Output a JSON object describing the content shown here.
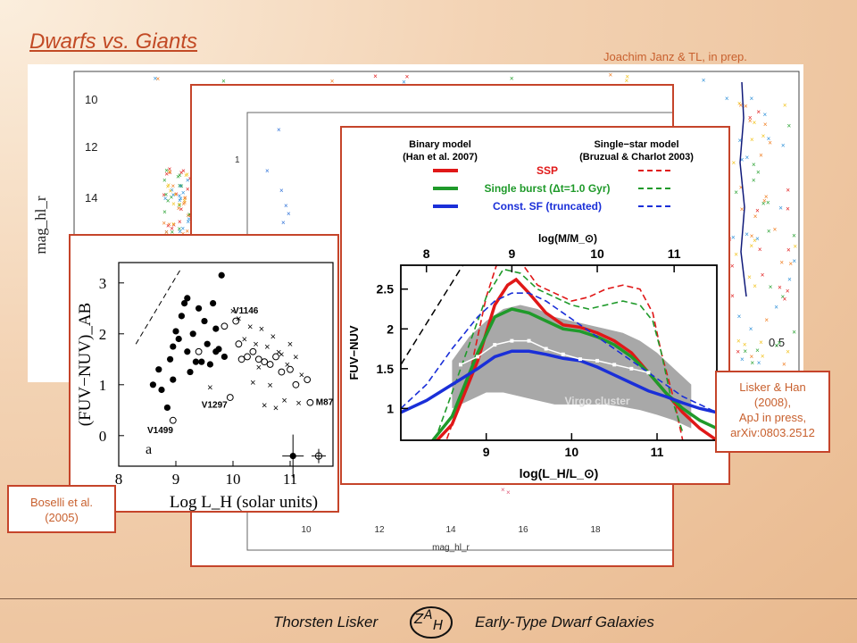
{
  "slide": {
    "title": "Dwarfs vs. Giants",
    "credit": "Joachim Janz & TL, in prep.",
    "footer_left": "Thorsten Lisker",
    "footer_right": "Early-Type Dwarf Galaxies"
  },
  "citations": {
    "boselli": [
      "Boselli et al.",
      "(2005)"
    ],
    "lisker": [
      "Lisker & Han",
      "(2008),",
      "ApJ in press,",
      "arXiv:0803.2512"
    ]
  },
  "colors": {
    "accent": "#c24a25",
    "frame": "#c5442a"
  },
  "chart_data": [
    {
      "id": "background-scatter",
      "type": "scatter",
      "ylabel": "mag_hl_r",
      "yticks": [
        "10",
        "12",
        "14"
      ],
      "right_label": "0.5"
    },
    {
      "id": "middle-scatter",
      "type": "scatter",
      "xlabel": "mag_hl_r",
      "xticks": [
        "10",
        "12",
        "14",
        "16",
        "18"
      ],
      "yticks": [
        "1"
      ]
    },
    {
      "id": "boselli",
      "type": "scatter",
      "xlabel": "Log L_H (solar units)",
      "ylabel": "(FUV−NUV)_AB",
      "xticks": [
        "8",
        "9",
        "10",
        "11"
      ],
      "yticks": [
        "0",
        "1",
        "2",
        "3"
      ],
      "xlim": [
        8,
        11.75
      ],
      "ylim": [
        -0.6,
        3.4
      ],
      "panel_letter": "a",
      "annotations": [
        {
          "text": "V1146",
          "x": 10.0,
          "y": 2.4
        },
        {
          "text": "V1297",
          "x": 9.45,
          "y": 0.55
        },
        {
          "text": "V1499",
          "x": 8.5,
          "y": 0.05
        },
        {
          "text": "M87",
          "x": 11.45,
          "y": 0.6
        }
      ],
      "series": [
        {
          "name": "",
          "marker": "filled-circle",
          "points": [
            [
              8.6,
              1.0
            ],
            [
              8.7,
              1.3
            ],
            [
              8.75,
              0.9
            ],
            [
              8.85,
              0.55
            ],
            [
              8.9,
              1.5
            ],
            [
              8.95,
              1.1
            ],
            [
              9.0,
              2.05
            ],
            [
              9.05,
              1.9
            ],
            [
              9.1,
              2.35
            ],
            [
              9.15,
              2.6
            ],
            [
              9.2,
              1.65
            ],
            [
              9.25,
              1.25
            ],
            [
              9.3,
              2.0
            ],
            [
              9.35,
              1.45
            ],
            [
              9.4,
              2.5
            ],
            [
              9.5,
              2.25
            ],
            [
              9.55,
              1.8
            ],
            [
              9.6,
              1.4
            ],
            [
              9.7,
              2.1
            ],
            [
              9.75,
              1.7
            ],
            [
              9.8,
              3.15
            ],
            [
              9.85,
              1.55
            ],
            [
              9.2,
              2.7
            ],
            [
              8.95,
              1.75
            ],
            [
              9.45,
              1.45
            ],
            [
              9.65,
              2.6
            ],
            [
              9.7,
              1.65
            ]
          ]
        },
        {
          "name": "",
          "marker": "open-circle",
          "points": [
            [
              8.95,
              0.3
            ],
            [
              9.4,
              1.65
            ],
            [
              9.85,
              2.15
            ],
            [
              9.95,
              0.75
            ],
            [
              10.05,
              2.25
            ],
            [
              10.1,
              1.8
            ],
            [
              10.15,
              1.5
            ],
            [
              10.25,
              1.55
            ],
            [
              10.35,
              1.65
            ],
            [
              10.45,
              1.5
            ],
            [
              10.55,
              1.45
            ],
            [
              10.65,
              1.4
            ],
            [
              10.75,
              1.55
            ],
            [
              10.85,
              1.25
            ],
            [
              11.0,
              1.3
            ],
            [
              11.1,
              1.0
            ],
            [
              11.3,
              1.1
            ],
            [
              11.35,
              0.65
            ]
          ]
        },
        {
          "name": "",
          "marker": "cross",
          "points": [
            [
              9.6,
              0.95
            ],
            [
              10.0,
              2.45
            ],
            [
              10.1,
              2.3
            ],
            [
              10.2,
              1.9
            ],
            [
              10.3,
              2.15
            ],
            [
              10.4,
              1.8
            ],
            [
              10.45,
              1.35
            ],
            [
              10.5,
              2.1
            ],
            [
              10.6,
              1.75
            ],
            [
              10.65,
              1.0
            ],
            [
              10.7,
              1.95
            ],
            [
              10.8,
              1.65
            ],
            [
              10.85,
              1.6
            ],
            [
              10.9,
              0.7
            ],
            [
              10.95,
              1.4
            ],
            [
              11.0,
              1.8
            ],
            [
              11.1,
              1.55
            ],
            [
              11.2,
              1.2
            ],
            [
              10.35,
              1.05
            ],
            [
              10.55,
              0.6
            ],
            [
              11.15,
              0.65
            ],
            [
              10.75,
              0.55
            ]
          ]
        },
        {
          "name": "",
          "marker": "filled-circle-errorbar",
          "points": [
            [
              11.05,
              -0.4
            ]
          ]
        },
        {
          "name": "",
          "marker": "open-circle-errorbar",
          "points": [
            [
              11.5,
              -0.4
            ]
          ]
        }
      ]
    },
    {
      "id": "lisker-han",
      "type": "line",
      "xlabel": "log(L_H/L_⊙)",
      "ylabel": "FUV−NUV",
      "top_axis_label": "log(M/M_⊙)",
      "xticks": [
        "9",
        "10",
        "11"
      ],
      "top_ticks": [
        "8",
        "9",
        "10",
        "11"
      ],
      "yticks": [
        "1",
        "1.5",
        "2",
        "2.5"
      ],
      "xlim": [
        8.0,
        11.7
      ],
      "ylim": [
        0.6,
        2.8
      ],
      "legend_headers": [
        "Binary model (Han et al. 2007)",
        "Single-star model (Bruzual & Charlot 2003)"
      ],
      "legend_entries": [
        "SSP",
        "Single burst (Δt=1.0 Gyr)",
        "Const. SF (truncated)"
      ],
      "band_label": "Virgo cluster",
      "series": [
        {
          "name": "SSP",
          "style": "binary",
          "color": "#e01818",
          "x": [
            8.25,
            8.6,
            8.9,
            9.1,
            9.25,
            9.35,
            9.5,
            9.7,
            9.9,
            10.1,
            10.3,
            10.5,
            10.7,
            10.9,
            11.1,
            11.3,
            11.5,
            11.7
          ],
          "y": [
            0.4,
            0.8,
            1.6,
            2.3,
            2.55,
            2.62,
            2.45,
            2.2,
            2.05,
            2.02,
            1.95,
            1.85,
            1.7,
            1.45,
            1.2,
            0.95,
            0.75,
            0.6
          ]
        },
        {
          "name": "SSP",
          "style": "single-star",
          "color": "#e01818",
          "x": [
            8.5,
            8.8,
            9.0,
            9.15,
            9.25,
            9.4,
            9.6,
            9.8,
            10.0,
            10.2,
            10.4,
            10.6,
            10.8,
            10.95,
            11.05,
            11.2,
            11.3
          ],
          "y": [
            0.5,
            1.4,
            2.4,
            2.9,
            3.0,
            2.85,
            2.55,
            2.45,
            2.35,
            2.4,
            2.5,
            2.55,
            2.5,
            2.2,
            1.7,
            1.1,
            0.6
          ]
        },
        {
          "name": "Single burst (Δt=1.0 Gyr)",
          "style": "binary",
          "color": "#1f9a2a",
          "x": [
            8.3,
            8.6,
            8.9,
            9.1,
            9.3,
            9.5,
            9.7,
            9.9,
            10.1,
            10.3,
            10.5,
            10.7,
            10.9,
            11.1,
            11.3,
            11.5,
            11.7
          ],
          "y": [
            0.5,
            0.9,
            1.7,
            2.15,
            2.25,
            2.2,
            2.1,
            2.0,
            1.97,
            1.9,
            1.8,
            1.65,
            1.45,
            1.2,
            1.0,
            0.85,
            0.75
          ]
        },
        {
          "name": "Single burst (Δt=1.0 Gyr)",
          "style": "single-star",
          "color": "#1f9a2a",
          "x": [
            8.4,
            8.7,
            9.0,
            9.2,
            9.4,
            9.6,
            9.8,
            10.0,
            10.2,
            10.4,
            10.6,
            10.8,
            10.95,
            11.05,
            11.15,
            11.3
          ],
          "y": [
            0.6,
            1.5,
            2.4,
            2.75,
            2.7,
            2.5,
            2.4,
            2.3,
            2.25,
            2.3,
            2.35,
            2.3,
            2.1,
            1.7,
            1.2,
            0.7
          ]
        },
        {
          "name": "Const. SF (truncated)",
          "style": "binary",
          "color": "#1a2fd8",
          "x": [
            8.0,
            8.3,
            8.6,
            8.9,
            9.1,
            9.3,
            9.5,
            9.7,
            9.9,
            10.1,
            10.3,
            10.5,
            10.7,
            10.9,
            11.1,
            11.3,
            11.5,
            11.7
          ],
          "y": [
            0.95,
            1.1,
            1.3,
            1.5,
            1.65,
            1.72,
            1.72,
            1.68,
            1.63,
            1.6,
            1.52,
            1.42,
            1.32,
            1.22,
            1.15,
            1.07,
            1.0,
            0.95
          ]
        },
        {
          "name": "Const. SF (truncated)",
          "style": "single-star",
          "color": "#1a2fd8",
          "x": [
            8.0,
            8.3,
            8.6,
            8.9,
            9.1,
            9.3,
            9.5,
            9.7,
            9.9,
            10.1,
            10.3,
            10.5,
            10.7,
            10.9,
            11.1,
            11.3,
            11.5,
            11.7
          ],
          "y": [
            1.0,
            1.3,
            1.75,
            2.15,
            2.35,
            2.45,
            2.45,
            2.35,
            2.2,
            2.05,
            1.9,
            1.75,
            1.6,
            1.45,
            1.3,
            1.15,
            1.05,
            0.95
          ]
        },
        {
          "name": "",
          "style": "data-median",
          "color": "#ffffff",
          "x": [
            8.7,
            8.9,
            9.1,
            9.3,
            9.5,
            9.7,
            9.9,
            10.1,
            10.3,
            10.5,
            10.7,
            10.9
          ],
          "y": [
            1.55,
            1.65,
            1.8,
            1.85,
            1.85,
            1.75,
            1.68,
            1.62,
            1.6,
            1.55,
            1.5,
            1.45
          ]
        }
      ],
      "band": {
        "x": [
          8.6,
          8.8,
          9.0,
          9.2,
          9.4,
          9.6,
          9.8,
          10.0,
          10.2,
          10.4,
          10.6,
          10.8,
          11.0,
          11.2,
          11.4
        ],
        "upper": [
          1.6,
          1.9,
          2.1,
          2.25,
          2.3,
          2.25,
          2.15,
          2.1,
          2.05,
          2.0,
          1.95,
          1.85,
          1.7,
          1.5,
          1.3
        ],
        "lower": [
          1.0,
          1.1,
          1.2,
          1.2,
          1.15,
          1.1,
          1.05,
          1.05,
          1.05,
          1.05,
          1.02,
          0.98,
          0.92,
          0.85,
          0.75
        ]
      }
    }
  ]
}
